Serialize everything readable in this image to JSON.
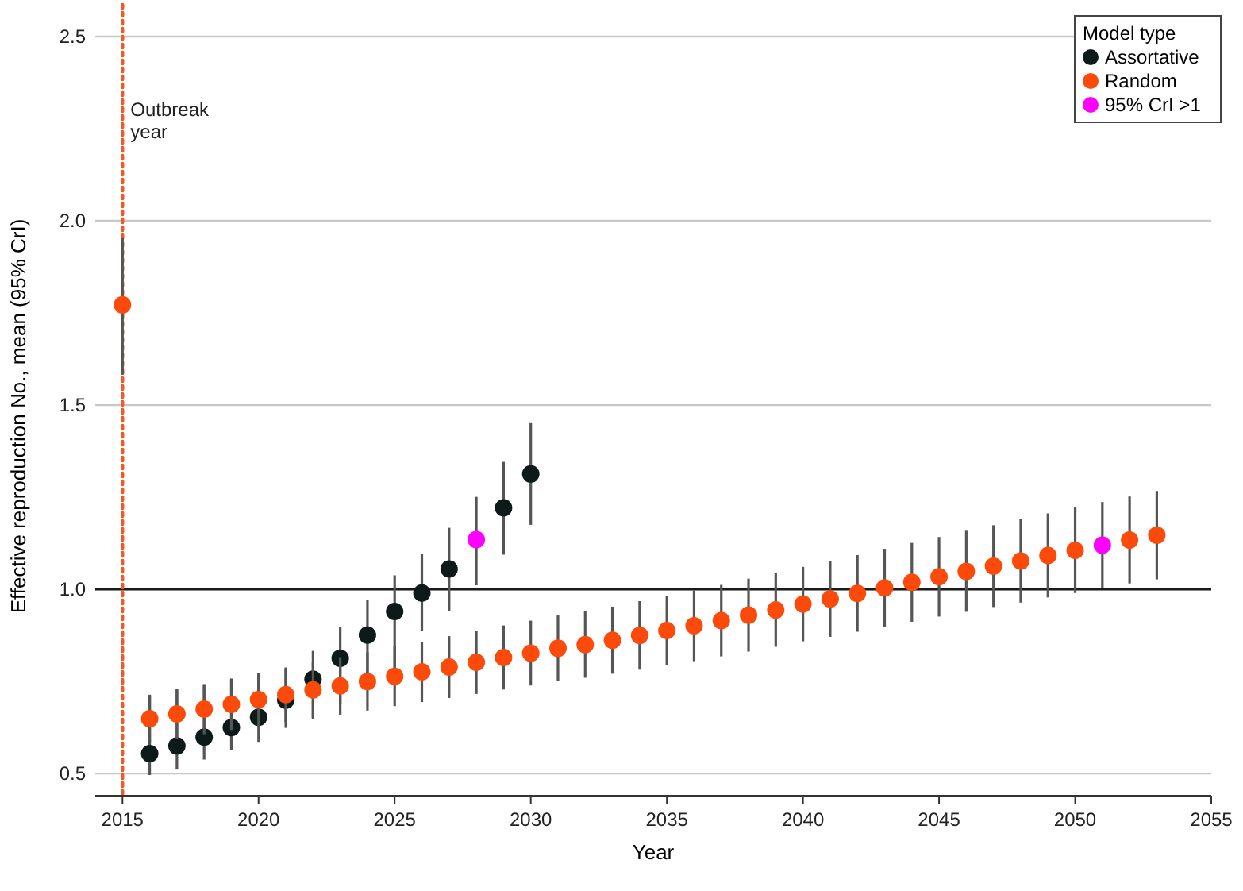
{
  "chart_data": {
    "type": "scatter",
    "xlabel": "Year",
    "ylabel": "Effective reproduction No., mean (95% CrI)",
    "legend_title": "Model type",
    "legend": "top right",
    "marker": "circle",
    "grid": "y",
    "xlim": [
      2014,
      2055
    ],
    "xticks": [
      2015,
      2020,
      2025,
      2030,
      2035,
      2040,
      2045,
      2050,
      2055
    ],
    "ylim": [
      0.44,
      2.5
    ],
    "yticks": [
      {
        "value": 0.5,
        "label": "0.5"
      },
      {
        "value": 1,
        "label": "1.0"
      },
      {
        "value": 1.5,
        "label": "1.5"
      },
      {
        "value": 2,
        "label": "2.0"
      },
      {
        "value": 2.5,
        "label": "2.5"
      }
    ],
    "ref_lines": [
      {
        "axis": "y",
        "value": 1,
        "label": null,
        "color": "#1a1a1a",
        "line_style": "solid"
      },
      {
        "axis": "x",
        "value": 2015,
        "label": "Outbreak year",
        "color": "#f05a28",
        "line_style": "dotted"
      }
    ],
    "series": [
      {
        "name": "Assortative",
        "color": "#0d1a1a",
        "x": [
          2016,
          2017,
          2018,
          2019,
          2020,
          2021,
          2022,
          2023,
          2024,
          2025,
          2026,
          2027,
          2029,
          2030
        ],
        "values": [
          0.554,
          0.575,
          0.599,
          0.625,
          0.653,
          0.699,
          0.756,
          0.813,
          0.876,
          0.94,
          0.99,
          1.055,
          1.221,
          1.313
        ],
        "errors": [
          [
            0.496,
            0.711
          ],
          [
            0.513,
            0.728
          ],
          [
            0.538,
            0.74
          ],
          [
            0.564,
            0.754
          ],
          [
            0.586,
            0.769
          ],
          [
            0.624,
            0.783
          ],
          [
            0.647,
            0.833
          ],
          [
            0.69,
            0.898
          ],
          [
            0.77,
            0.97
          ],
          [
            0.783,
            1.038
          ],
          [
            0.886,
            1.096
          ],
          [
            0.94,
            1.167
          ],
          [
            1.094,
            1.346
          ],
          [
            1.175,
            1.451
          ]
        ]
      },
      {
        "name": "Random",
        "color": "#fc4a0a",
        "x": [
          2015,
          2016,
          2017,
          2018,
          2019,
          2020,
          2021,
          2022,
          2023,
          2024,
          2025,
          2026,
          2027,
          2028,
          2029,
          2030,
          2031,
          2032,
          2033,
          2034,
          2035,
          2036,
          2037,
          2038,
          2039,
          2040,
          2041,
          2042,
          2043,
          2044,
          2045,
          2046,
          2047,
          2048,
          2049,
          2050,
          2052,
          2053
        ],
        "values": [
          1.772,
          0.649,
          0.662,
          0.675,
          0.688,
          0.701,
          0.714,
          0.727,
          0.738,
          0.75,
          0.764,
          0.776,
          0.789,
          0.802,
          0.815,
          0.827,
          0.84,
          0.85,
          0.862,
          0.875,
          0.888,
          0.901,
          0.915,
          0.93,
          0.944,
          0.96,
          0.974,
          0.989,
          1.004,
          1.019,
          1.034,
          1.049,
          1.063,
          1.077,
          1.092,
          1.106,
          1.134,
          1.147
        ],
        "errors": [
          [
            1.583,
            1.953
          ],
          0.065,
          0.067,
          0.068,
          0.07,
          0.072,
          0.074,
          0.076,
          0.078,
          0.079,
          0.081,
          0.082,
          0.084,
          0.086,
          0.087,
          0.088,
          0.089,
          0.09,
          0.091,
          0.093,
          0.094,
          0.096,
          0.097,
          0.099,
          0.1,
          0.101,
          0.103,
          0.104,
          0.106,
          0.107,
          0.108,
          0.11,
          0.111,
          0.113,
          0.114,
          0.116,
          0.118,
          0.12
        ]
      },
      {
        "name": "95% CrI >1",
        "color": "#ff00ff",
        "x": [
          2028,
          2051
        ],
        "values": [
          1.135,
          1.12
        ],
        "errors": [
          [
            1.011,
            1.251
          ],
          0.117
        ]
      }
    ]
  }
}
